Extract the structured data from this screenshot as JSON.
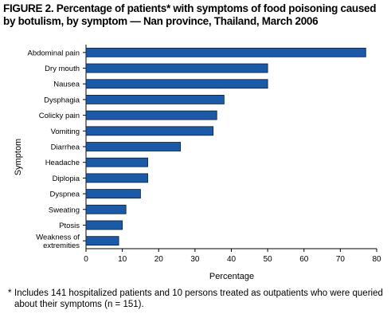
{
  "figure": {
    "title": "FIGURE 2. Percentage of patients* with symptoms of food poisoning caused by botulism, by symptom — Nan province, Thailand, March 2006",
    "footnote_mark": "*",
    "footnote": "Includes 141 hospitalized patients and 10 persons treated as outpatients who were queried about their symptoms (n = 151)."
  },
  "colors": {
    "bar": "#1b5aa6",
    "bar_border": "#0a1f3f"
  },
  "chart_data": {
    "type": "bar",
    "orientation": "horizontal",
    "categories": [
      "Abdominal pain",
      "Dry mouth",
      "Nausea",
      "Dysphagia",
      "Colicky pain",
      "Vomiting",
      "Diarrhea",
      "Headache",
      "Diplopia",
      "Dyspnea",
      "Sweating",
      "Ptosis",
      "Weakness of extremities"
    ],
    "category_lines": [
      [
        "Abdominal pain"
      ],
      [
        "Dry mouth"
      ],
      [
        "Nausea"
      ],
      [
        "Dysphagia"
      ],
      [
        "Colicky pain"
      ],
      [
        "Vomiting"
      ],
      [
        "Diarrhea"
      ],
      [
        "Headache"
      ],
      [
        "Diplopia"
      ],
      [
        "Dyspnea"
      ],
      [
        "Sweating"
      ],
      [
        "Ptosis"
      ],
      [
        "Weakness of",
        "extremities"
      ]
    ],
    "values": [
      77,
      50,
      50,
      38,
      36,
      35,
      26,
      17,
      17,
      15,
      11,
      10,
      9
    ],
    "xlabel": "Percentage",
    "ylabel": "Symptom",
    "xlim": [
      0,
      80
    ],
    "xticks": [
      0,
      10,
      20,
      30,
      40,
      50,
      60,
      70,
      80
    ],
    "grid": false
  }
}
